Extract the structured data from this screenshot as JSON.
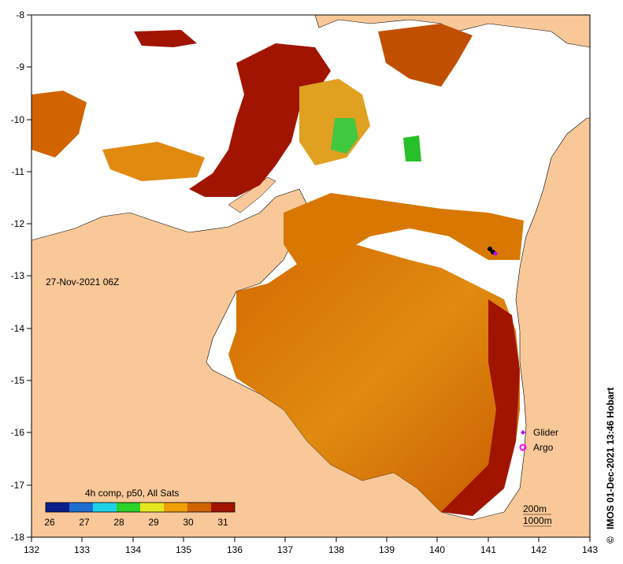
{
  "map": {
    "date_label": "27-Nov-2021 06Z",
    "lon_ticks": [
      "132",
      "133",
      "134",
      "135",
      "136",
      "137",
      "138",
      "139",
      "140",
      "141",
      "142",
      "143"
    ],
    "lat_ticks": [
      "-8",
      "-9",
      "-10",
      "-11",
      "-12",
      "-13",
      "-14",
      "-15",
      "-16",
      "-17",
      "-18"
    ],
    "colorbar": {
      "title": "4h comp, p50, All Sats",
      "ticks": [
        "26",
        "27",
        "28",
        "29",
        "30",
        "31"
      ],
      "colors": [
        "#0a1e8c",
        "#1e6ed2",
        "#1ed2e6",
        "#28d228",
        "#e6e61e",
        "#f0a000",
        "#d26400",
        "#a01400"
      ]
    },
    "legend": {
      "glider": "Glider",
      "argo": "Argo",
      "glider_color": "#c000ff",
      "argo_color": "#ff00ff"
    },
    "depth_contours": {
      "c200": "200m",
      "c1000": "1000m"
    },
    "credit": "IMOS 01-Dec-2021 13:46 Hobart",
    "copyright": "©",
    "land_color": "#f9c898"
  }
}
